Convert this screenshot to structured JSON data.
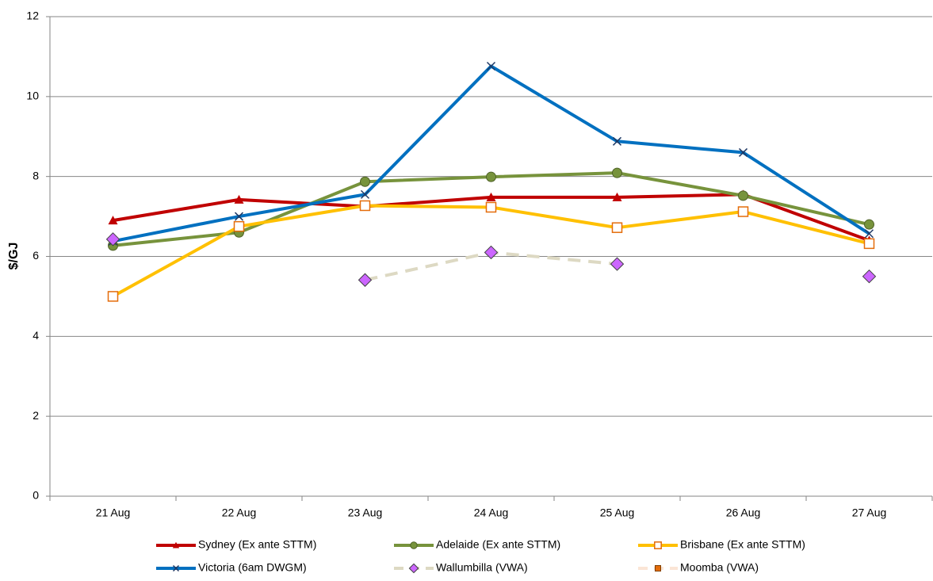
{
  "chart_data": {
    "type": "line",
    "y_label": "$/GJ",
    "categories": [
      "21 Aug",
      "22 Aug",
      "23 Aug",
      "24 Aug",
      "25 Aug",
      "26 Aug",
      "27 Aug"
    ],
    "ylim": [
      0,
      12
    ],
    "yticks": [
      0,
      2,
      4,
      6,
      8,
      10,
      12
    ],
    "grid": true,
    "series": [
      {
        "name": "Sydney (Ex ante STTM)",
        "color": "#c00000",
        "marker": "triangle",
        "values": [
          6.9,
          7.42,
          7.25,
          7.48,
          7.48,
          7.55,
          6.4
        ]
      },
      {
        "name": "Adelaide (Ex ante STTM)",
        "color": "#77933c",
        "marker": "circle",
        "values": [
          6.27,
          6.6,
          7.87,
          7.99,
          8.09,
          7.52,
          6.8
        ]
      },
      {
        "name": "Brisbane (Ex ante STTM)",
        "color": "#ffc000",
        "marker": "open-square",
        "marker_color": "#e46c0a",
        "values": [
          5.0,
          6.75,
          7.27,
          7.23,
          6.72,
          7.12,
          6.32
        ]
      },
      {
        "name": "Victoria (6am DWGM)",
        "color": "#0070c0",
        "marker": "x",
        "marker_color": "#1f3864",
        "values": [
          6.38,
          7.0,
          7.55,
          10.76,
          8.88,
          8.6,
          6.57
        ]
      },
      {
        "name": "Wallumbilla (VWA)",
        "color": "#ddd9c3",
        "dashed": true,
        "marker": "diamond",
        "marker_color": "#cc66ff",
        "values": [
          6.43,
          null,
          5.41,
          6.1,
          5.81,
          null,
          5.5
        ]
      },
      {
        "name": "Moomba (VWA)",
        "color": "#fbe5d6",
        "dashed": true,
        "marker": "square",
        "marker_color": "#e46c0a",
        "values": [
          null,
          null,
          null,
          null,
          null,
          null,
          null
        ]
      }
    ]
  }
}
